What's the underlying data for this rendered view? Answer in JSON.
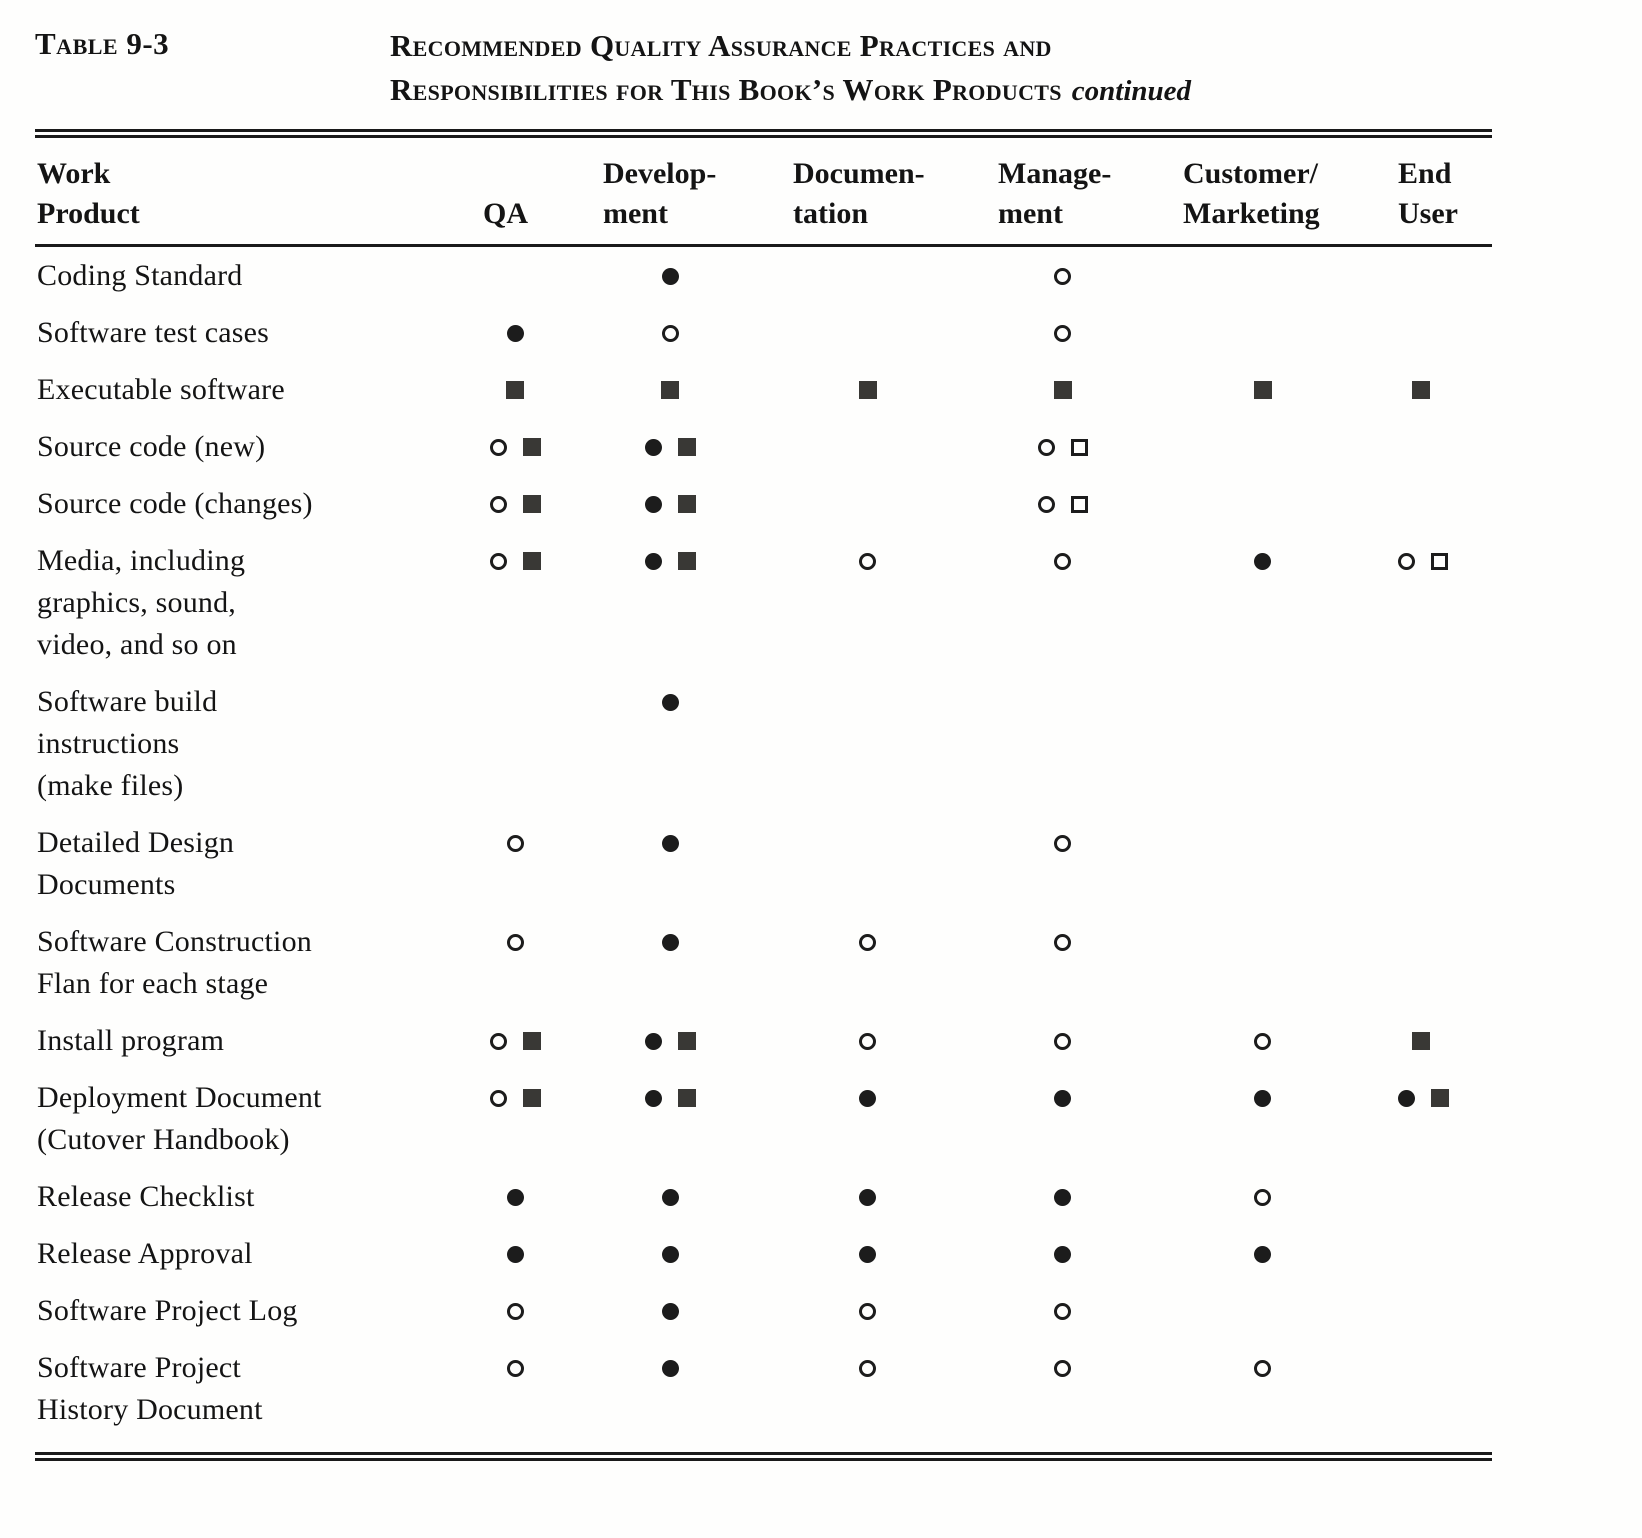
{
  "header": {
    "table_label": "Table 9-3",
    "title_line1": "Recommended Quality Assurance Practices and",
    "title_line2": "Responsibilities for This Book’s Work Products",
    "continued": "continued"
  },
  "table": {
    "legend": {
      "filled-circle": "●",
      "open-circle": "○",
      "filled-square": "■",
      "open-square": "□"
    },
    "columns": [
      {
        "id": "work-product",
        "lines": [
          "Work",
          "Product"
        ]
      },
      {
        "id": "qa",
        "lines": [
          "QA"
        ]
      },
      {
        "id": "development",
        "lines": [
          "Develop-",
          "ment"
        ]
      },
      {
        "id": "documentation",
        "lines": [
          "Documen-",
          "tation"
        ]
      },
      {
        "id": "management",
        "lines": [
          "Manage-",
          "ment"
        ]
      },
      {
        "id": "customer-marketing",
        "lines": [
          "Customer/",
          "Marketing"
        ]
      },
      {
        "id": "end-user",
        "lines": [
          "End",
          "User"
        ]
      }
    ],
    "rows": [
      {
        "label_lines": [
          "Coding Standard"
        ],
        "cells": [
          [],
          [
            "filled-circle"
          ],
          [],
          [
            "open-circle"
          ],
          [],
          []
        ]
      },
      {
        "label_lines": [
          "Software test cases"
        ],
        "cells": [
          [
            "filled-circle"
          ],
          [
            "open-circle"
          ],
          [],
          [
            "open-circle"
          ],
          [],
          []
        ]
      },
      {
        "label_lines": [
          "Executable software"
        ],
        "cells": [
          [
            "filled-square"
          ],
          [
            "filled-square"
          ],
          [
            "filled-square"
          ],
          [
            "filled-square"
          ],
          [
            "filled-square"
          ],
          [
            "filled-square"
          ]
        ]
      },
      {
        "label_lines": [
          "Source code (new)"
        ],
        "cells": [
          [
            "open-circle",
            "filled-square"
          ],
          [
            "filled-circle",
            "filled-square"
          ],
          [],
          [
            "open-circle",
            "open-square"
          ],
          [],
          []
        ]
      },
      {
        "label_lines": [
          "Source code (changes)"
        ],
        "cells": [
          [
            "open-circle",
            "filled-square"
          ],
          [
            "filled-circle",
            "filled-square"
          ],
          [],
          [
            "open-circle",
            "open-square"
          ],
          [],
          []
        ]
      },
      {
        "label_lines": [
          "Media, including",
          "graphics, sound,",
          "video, and so on"
        ],
        "cells": [
          [
            "open-circle",
            "filled-square"
          ],
          [
            "filled-circle",
            "filled-square"
          ],
          [
            "open-circle"
          ],
          [
            "open-circle"
          ],
          [
            "filled-circle"
          ],
          [
            "open-circle",
            "open-square"
          ]
        ]
      },
      {
        "label_lines": [
          "Software build",
          "instructions",
          "(make files)"
        ],
        "cells": [
          [],
          [
            "filled-circle"
          ],
          [],
          [],
          [],
          []
        ]
      },
      {
        "label_lines": [
          "Detailed Design",
          "Documents"
        ],
        "cells": [
          [
            "open-circle"
          ],
          [
            "filled-circle"
          ],
          [],
          [
            "open-circle"
          ],
          [],
          []
        ]
      },
      {
        "label_lines": [
          "Software Construction",
          "Flan for each stage"
        ],
        "cells": [
          [
            "open-circle"
          ],
          [
            "filled-circle"
          ],
          [
            "open-circle"
          ],
          [
            "open-circle"
          ],
          [],
          []
        ]
      },
      {
        "label_lines": [
          "Install program"
        ],
        "cells": [
          [
            "open-circle",
            "filled-square"
          ],
          [
            "filled-circle",
            "filled-square"
          ],
          [
            "open-circle"
          ],
          [
            "open-circle"
          ],
          [
            "open-circle"
          ],
          [
            "filled-square"
          ]
        ]
      },
      {
        "label_lines": [
          "Deployment Document",
          "(Cutover Handbook)"
        ],
        "cells": [
          [
            "open-circle",
            "filled-square"
          ],
          [
            "filled-circle",
            "filled-square"
          ],
          [
            "filled-circle"
          ],
          [
            "filled-circle"
          ],
          [
            "filled-circle"
          ],
          [
            "filled-circle",
            "filled-square"
          ]
        ]
      },
      {
        "label_lines": [
          "Release Checklist"
        ],
        "cells": [
          [
            "filled-circle"
          ],
          [
            "filled-circle"
          ],
          [
            "filled-circle"
          ],
          [
            "filled-circle"
          ],
          [
            "open-circle"
          ],
          []
        ]
      },
      {
        "label_lines": [
          "Release Approval"
        ],
        "cells": [
          [
            "filled-circle"
          ],
          [
            "filled-circle"
          ],
          [
            "filled-circle"
          ],
          [
            "filled-circle"
          ],
          [
            "filled-circle"
          ],
          []
        ]
      },
      {
        "label_lines": [
          "Software Project Log"
        ],
        "cells": [
          [
            "open-circle"
          ],
          [
            "filled-circle"
          ],
          [
            "open-circle"
          ],
          [
            "open-circle"
          ],
          [],
          []
        ]
      },
      {
        "label_lines": [
          "Software Project",
          "History Document"
        ],
        "cells": [
          [
            "open-circle"
          ],
          [
            "filled-circle"
          ],
          [
            "open-circle"
          ],
          [
            "open-circle"
          ],
          [
            "open-circle"
          ],
          []
        ]
      }
    ]
  }
}
